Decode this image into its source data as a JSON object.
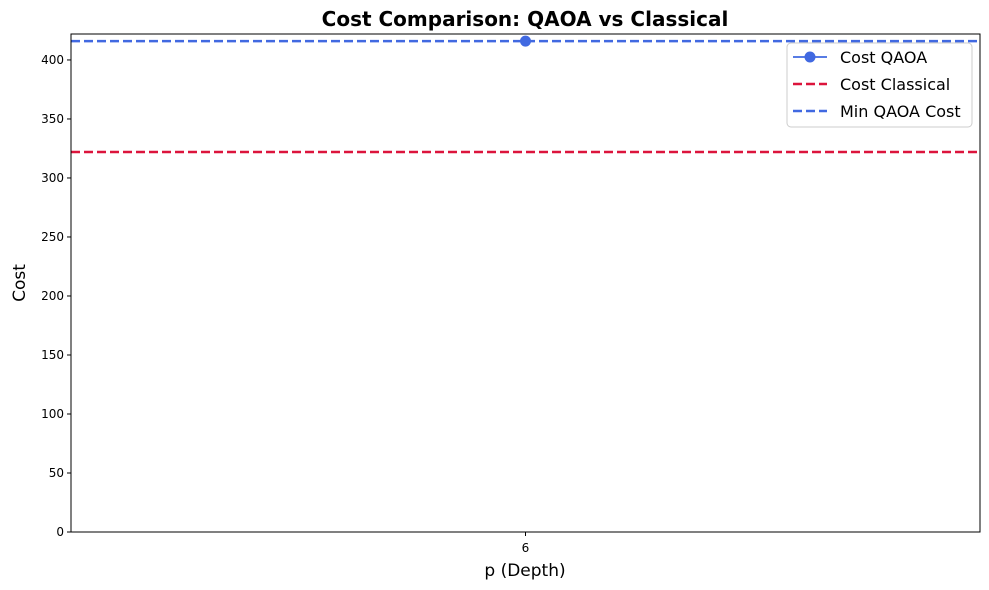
{
  "chart_data": {
    "type": "line",
    "title": "Cost Comparison: QAOA vs Classical",
    "xlabel": "p (Depth)",
    "ylabel": "Cost",
    "x": [
      6
    ],
    "x_ticks": [
      "6"
    ],
    "ylim": [
      0,
      422
    ],
    "y_ticks": [
      0,
      50,
      100,
      150,
      200,
      250,
      300,
      350,
      400
    ],
    "grid": false,
    "legend_position": "top-right",
    "series": [
      {
        "name": "Cost QAOA",
        "kind": "line-marker",
        "values": [
          416
        ],
        "color": "#4169E1"
      }
    ],
    "reference_lines": [
      {
        "name": "Cost Classical",
        "value": 322,
        "style": "dashed",
        "color": "#DC143C"
      },
      {
        "name": "Min QAOA Cost",
        "value": 416,
        "style": "dashed",
        "color": "#4169E1"
      }
    ]
  }
}
